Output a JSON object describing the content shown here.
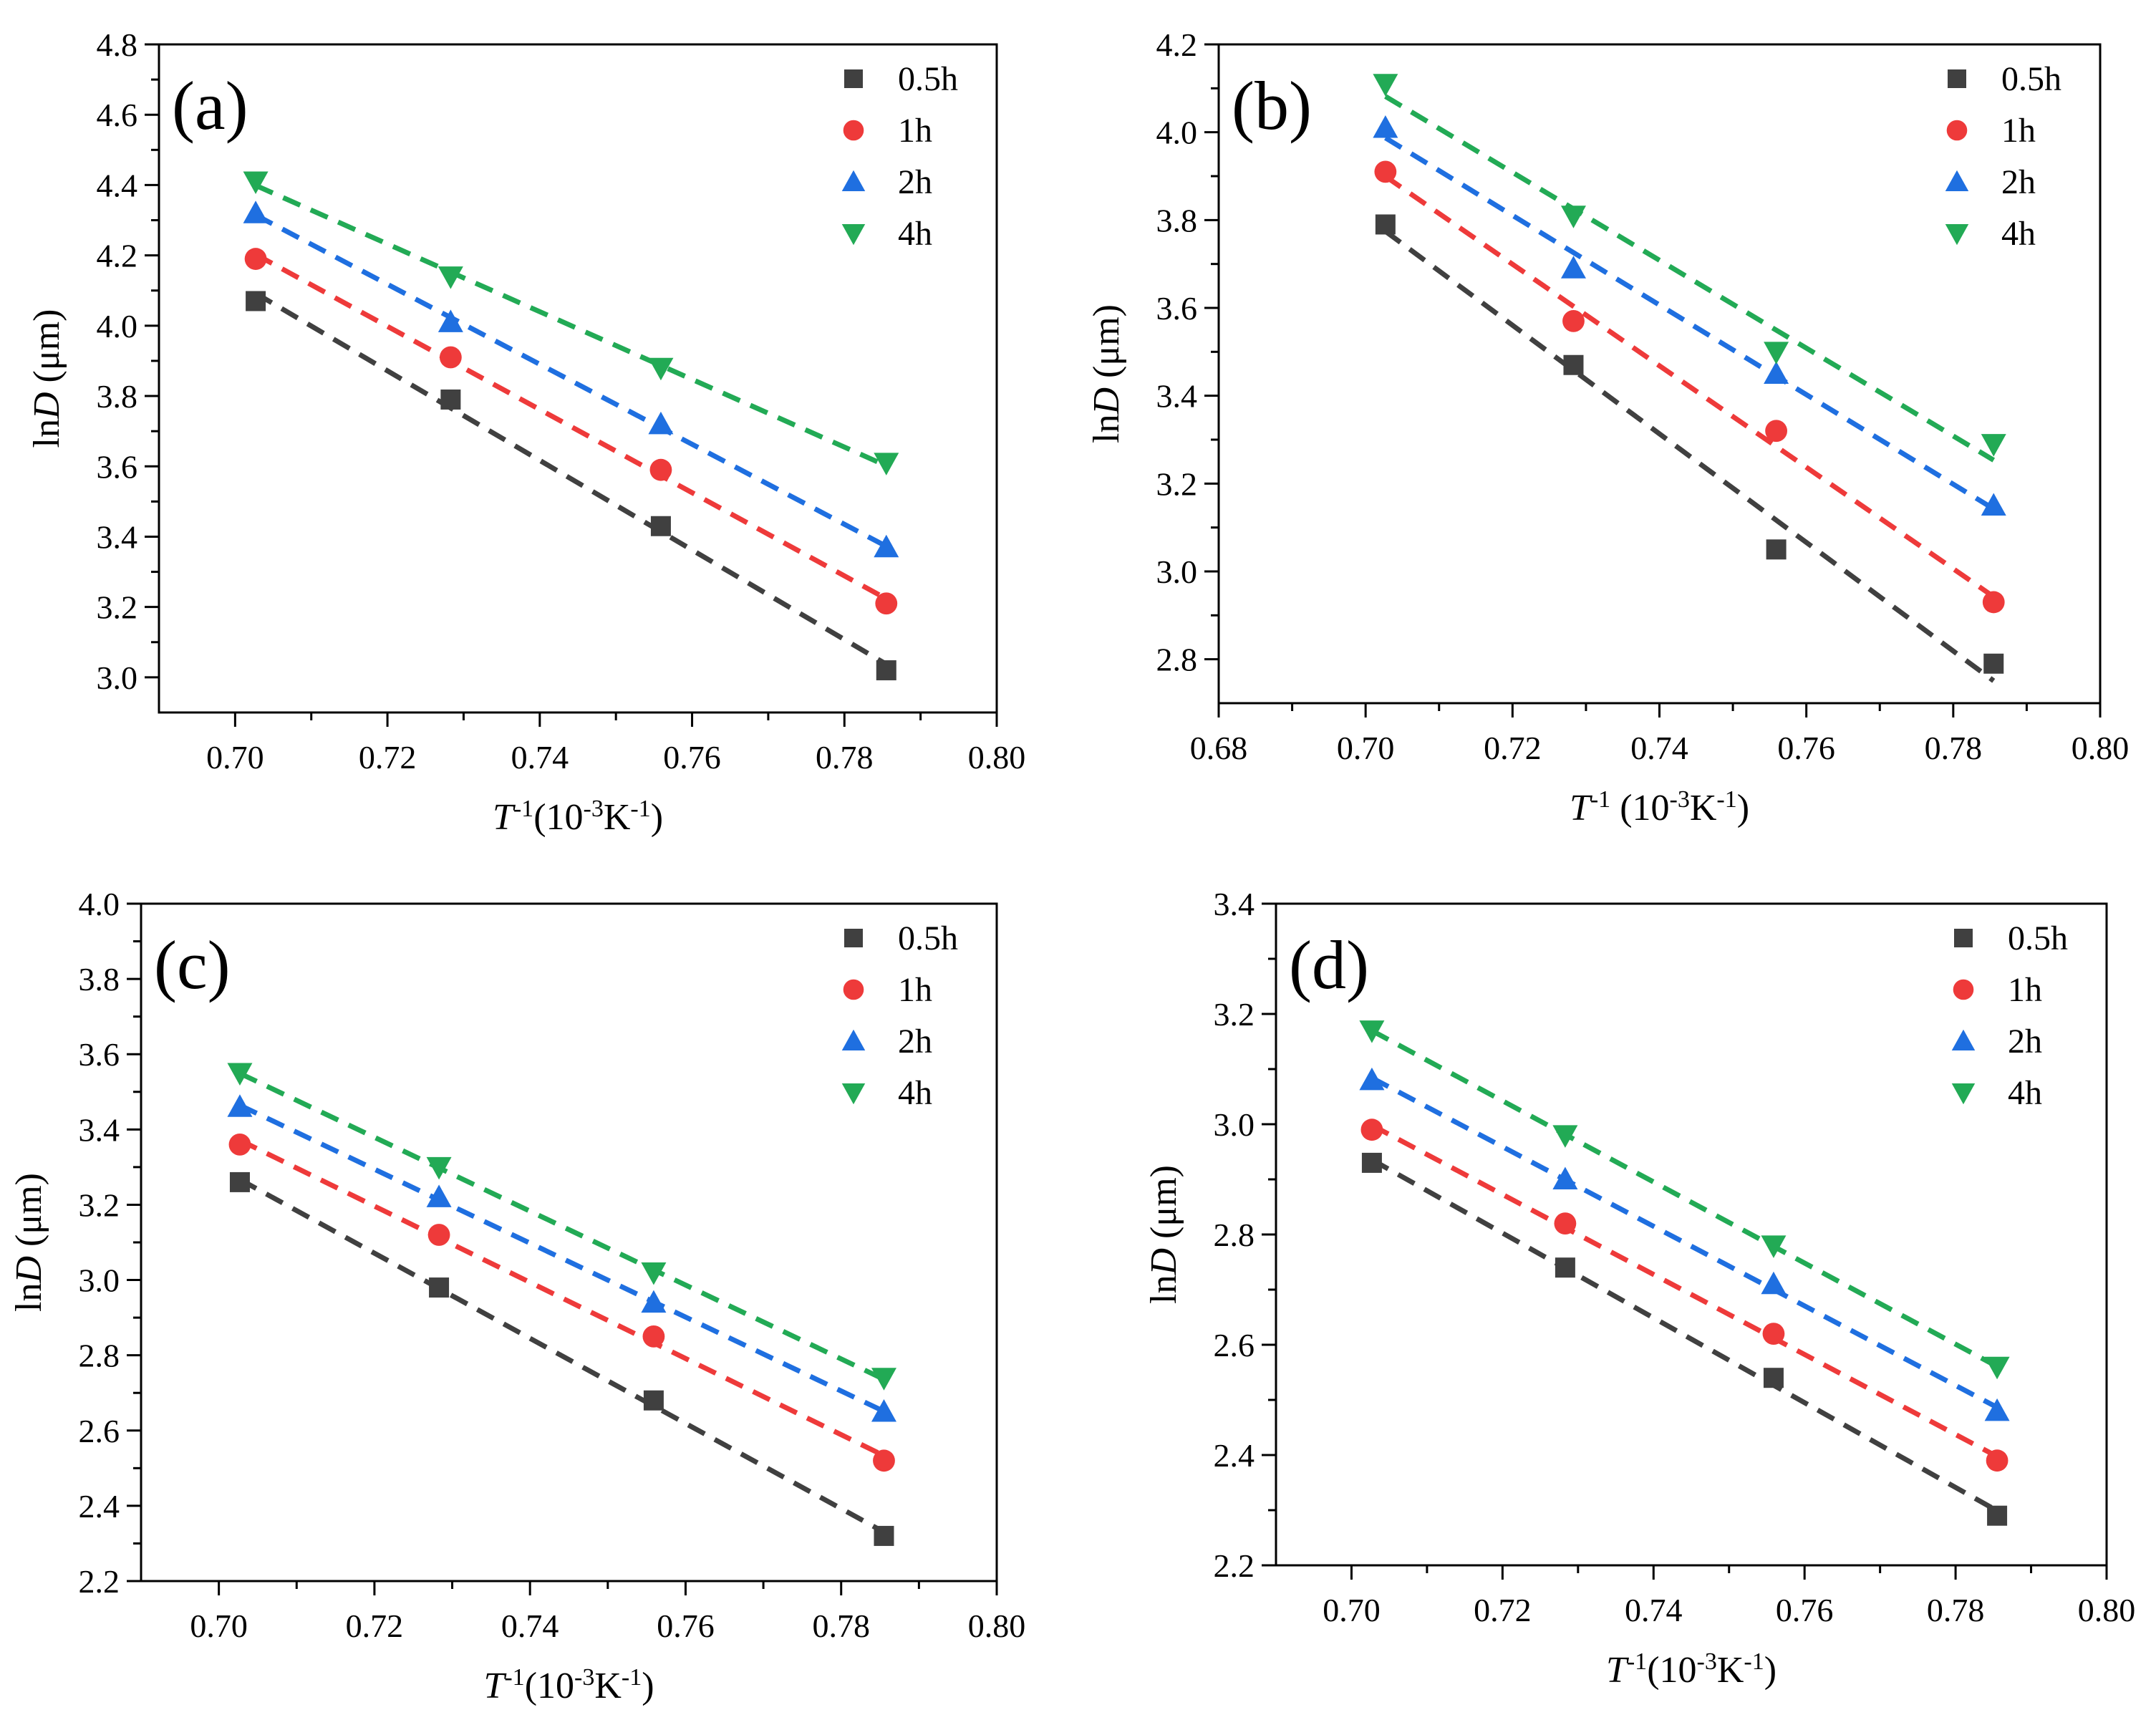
{
  "chart_data": [
    {
      "type": "scatter",
      "panel_label": "(a)",
      "xlabel": {
        "italic": "T",
        "sup1": "-1",
        "rest": "(10",
        "sup2": "-3",
        "k": "K",
        "sup3": "-1",
        "close": ")"
      },
      "ylabel": {
        "prefix": "ln",
        "italic": "D",
        "unit": " (μm)"
      },
      "xlim": [
        0.69,
        0.8
      ],
      "ylim": [
        2.9,
        4.8
      ],
      "xticks": [
        "0.70",
        "0.72",
        "0.74",
        "0.76",
        "0.78",
        "0.80"
      ],
      "yticks": [
        "3.0",
        "3.2",
        "3.4",
        "3.6",
        "3.8",
        "4.0",
        "4.2",
        "4.4",
        "4.6",
        "4.8"
      ],
      "legend_position": "top-right",
      "x": [
        0.7027,
        0.7283,
        0.7559,
        0.7855
      ],
      "series": [
        {
          "name": "0.5h",
          "marker": "square",
          "color": "#404040",
          "values": [
            4.07,
            3.79,
            3.43,
            3.02
          ]
        },
        {
          "name": "1h",
          "marker": "circle",
          "color": "#ee3a3a",
          "values": [
            4.19,
            3.91,
            3.59,
            3.21
          ]
        },
        {
          "name": "2h",
          "marker": "triangle-up",
          "color": "#1f6fe0",
          "values": [
            4.32,
            4.01,
            3.72,
            3.37
          ]
        },
        {
          "name": "4h",
          "marker": "triangle-down",
          "color": "#22aa55",
          "values": [
            4.41,
            4.14,
            3.88,
            3.61
          ]
        }
      ]
    },
    {
      "type": "scatter",
      "panel_label": "(b)",
      "xlabel": {
        "italic": "T",
        "sup1": "-1",
        "rest": " (10",
        "sup2": "-3",
        "k": "K",
        "sup3": "-1",
        "close": ")"
      },
      "ylabel": {
        "prefix": "ln",
        "italic": "D",
        "unit": " (μm)"
      },
      "xlim": [
        0.68,
        0.8
      ],
      "ylim": [
        2.7,
        4.2
      ],
      "xticks": [
        "0.68",
        "0.70",
        "0.72",
        "0.74",
        "0.76",
        "0.78",
        "0.80"
      ],
      "yticks": [
        "2.8",
        "3.0",
        "3.2",
        "3.4",
        "3.6",
        "3.8",
        "4.0",
        "4.2"
      ],
      "legend_position": "top-right",
      "x": [
        0.7027,
        0.7283,
        0.7559,
        0.7855
      ],
      "series": [
        {
          "name": "0.5h",
          "marker": "square",
          "color": "#404040",
          "values": [
            3.79,
            3.47,
            3.05,
            2.79
          ]
        },
        {
          "name": "1h",
          "marker": "circle",
          "color": "#ee3a3a",
          "values": [
            3.91,
            3.57,
            3.32,
            2.93
          ]
        },
        {
          "name": "2h",
          "marker": "triangle-up",
          "color": "#1f6fe0",
          "values": [
            4.01,
            3.69,
            3.45,
            3.15
          ]
        },
        {
          "name": "4h",
          "marker": "triangle-down",
          "color": "#22aa55",
          "values": [
            4.11,
            3.81,
            3.5,
            3.29
          ]
        }
      ]
    },
    {
      "type": "scatter",
      "panel_label": "(c)",
      "xlabel": {
        "italic": "T",
        "sup1": "-1",
        "rest": "(10",
        "sup2": "-3",
        "k": "K",
        "sup3": "-1",
        "close": ")"
      },
      "ylabel": {
        "prefix": "ln",
        "italic": "D",
        "unit": " (μm)"
      },
      "xlim": [
        0.69,
        0.8
      ],
      "ylim": [
        2.2,
        4.0
      ],
      "xticks": [
        "0.70",
        "0.72",
        "0.74",
        "0.76",
        "0.78",
        "0.80"
      ],
      "yticks": [
        "2.2",
        "2.4",
        "2.6",
        "2.8",
        "3.0",
        "3.2",
        "3.4",
        "3.6",
        "3.8",
        "4.0"
      ],
      "legend_position": "top-right",
      "x": [
        0.7027,
        0.7283,
        0.7559,
        0.7855
      ],
      "series": [
        {
          "name": "0.5h",
          "marker": "square",
          "color": "#404040",
          "values": [
            3.26,
            2.98,
            2.68,
            2.32
          ]
        },
        {
          "name": "1h",
          "marker": "circle",
          "color": "#ee3a3a",
          "values": [
            3.36,
            3.12,
            2.85,
            2.52
          ]
        },
        {
          "name": "2h",
          "marker": "triangle-up",
          "color": "#1f6fe0",
          "values": [
            3.46,
            3.22,
            2.94,
            2.65
          ]
        },
        {
          "name": "4h",
          "marker": "triangle-down",
          "color": "#22aa55",
          "values": [
            3.55,
            3.3,
            3.02,
            2.74
          ]
        }
      ]
    },
    {
      "type": "scatter",
      "panel_label": "(d)",
      "xlabel": {
        "italic": "T",
        "sup1": "-1",
        "rest": "(10",
        "sup2": "-3",
        "k": "K",
        "sup3": "-1",
        "close": ")"
      },
      "ylabel": {
        "prefix": "ln",
        "italic": "D",
        "unit": " (μm)"
      },
      "xlim": [
        0.69,
        0.8
      ],
      "ylim": [
        2.2,
        3.4
      ],
      "xticks": [
        "0.70",
        "0.72",
        "0.74",
        "0.76",
        "0.78",
        "0.80"
      ],
      "yticks": [
        "2.2",
        "2.4",
        "2.6",
        "2.8",
        "3.0",
        "3.2",
        "3.4"
      ],
      "legend_position": "top-right",
      "x": [
        0.7027,
        0.7283,
        0.7559,
        0.7855
      ],
      "series": [
        {
          "name": "0.5h",
          "marker": "square",
          "color": "#404040",
          "values": [
            2.93,
            2.74,
            2.54,
            2.29
          ]
        },
        {
          "name": "1h",
          "marker": "circle",
          "color": "#ee3a3a",
          "values": [
            2.99,
            2.82,
            2.62,
            2.39
          ]
        },
        {
          "name": "2h",
          "marker": "triangle-up",
          "color": "#1f6fe0",
          "values": [
            3.08,
            2.9,
            2.71,
            2.48
          ]
        },
        {
          "name": "4h",
          "marker": "triangle-down",
          "color": "#22aa55",
          "values": [
            3.17,
            2.98,
            2.78,
            2.56
          ]
        }
      ]
    }
  ]
}
